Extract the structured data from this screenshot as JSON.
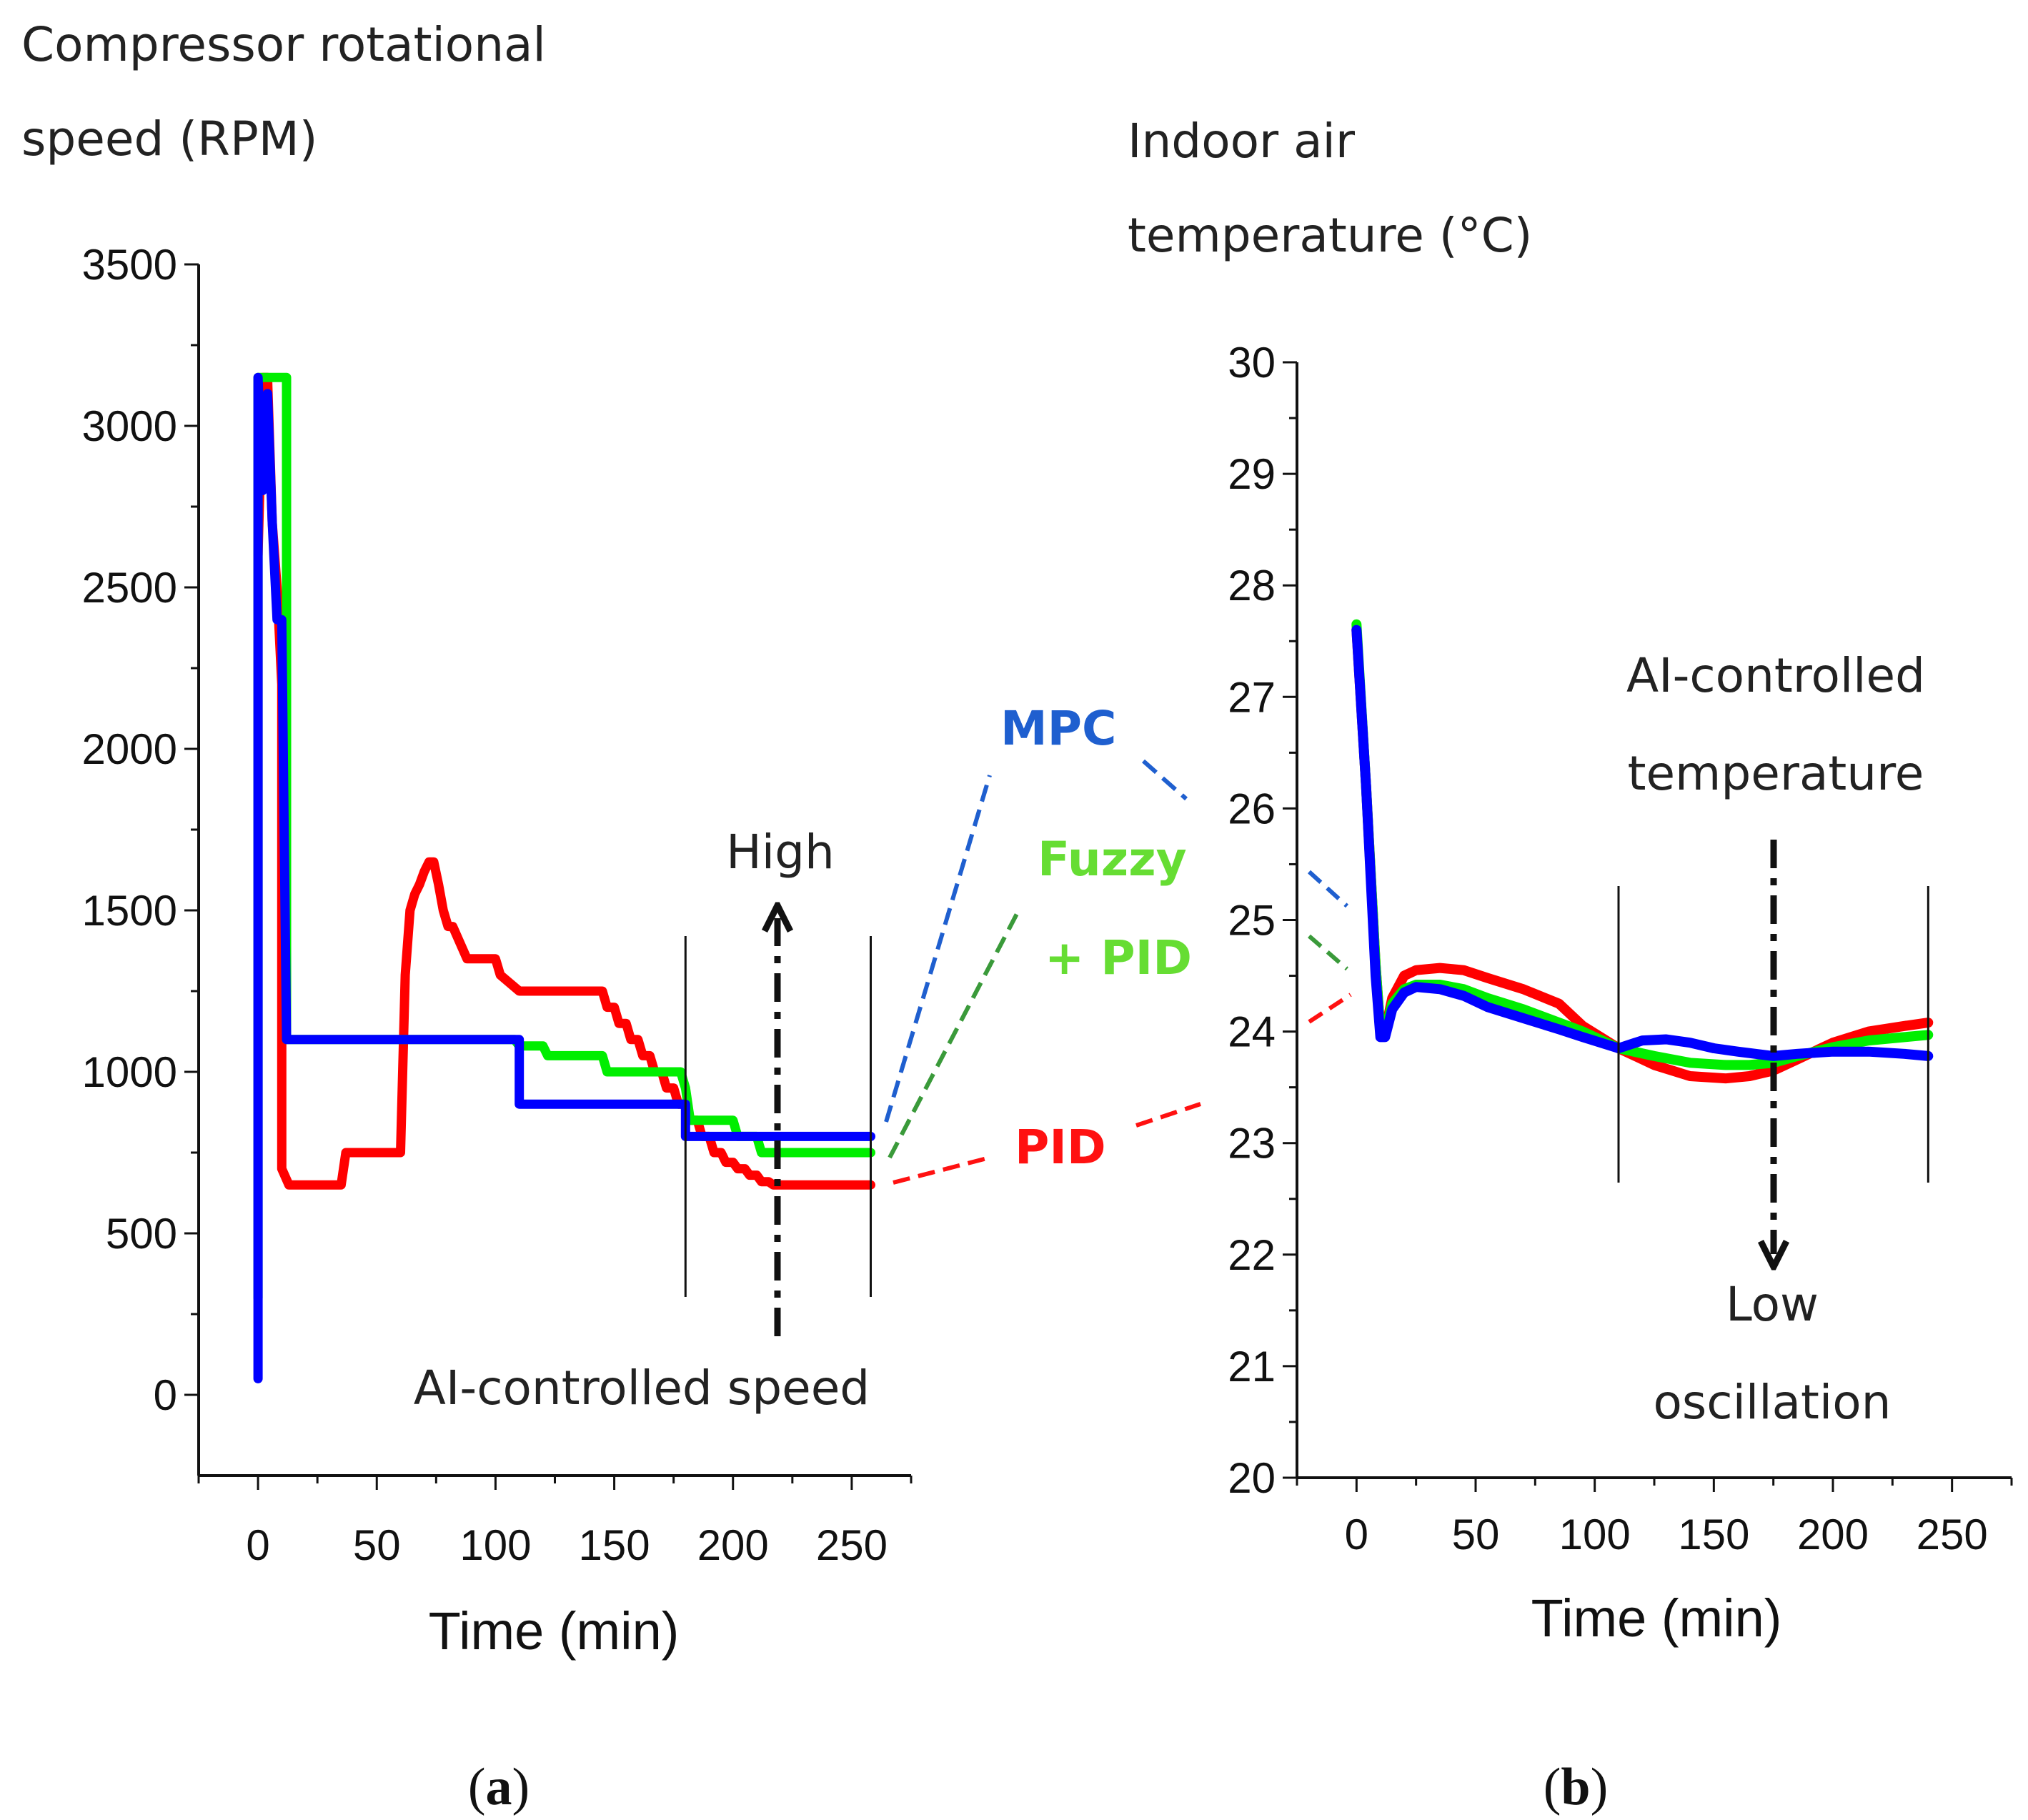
{
  "captions": {
    "a": [
      "(",
      "a",
      ")"
    ],
    "b": [
      "(",
      "b",
      ")"
    ]
  },
  "chart_data": [
    {
      "id": "a",
      "type": "line",
      "title_lines": [
        "Compressor rotational",
        "speed (RPM)"
      ],
      "xlabel": "Time (min)",
      "ylabel": "Compressor rotational speed (RPM)",
      "xlim": [
        -25,
        275
      ],
      "ylim": [
        -250,
        3500
      ],
      "xticks": [
        0,
        50,
        100,
        150,
        200,
        250
      ],
      "yticks": [
        0,
        500,
        1000,
        1500,
        2000,
        2500,
        3000,
        3500
      ],
      "vlines": [
        180,
        258
      ],
      "annotations": {
        "arrow_label": "High",
        "bottom_label": "AI-controlled speed"
      },
      "series": [
        {
          "name": "PID",
          "color": "#ff0000",
          "x": [
            0,
            2,
            4,
            6,
            8,
            10,
            10,
            13,
            35,
            37,
            50,
            52,
            60,
            62,
            64,
            66,
            68,
            70,
            72,
            74,
            76,
            78,
            80,
            82,
            88,
            90,
            100,
            102,
            110,
            112,
            145,
            147,
            150,
            152,
            155,
            157,
            160,
            162,
            165,
            167,
            170,
            172,
            175,
            177,
            180,
            182,
            185,
            187,
            190,
            192,
            195,
            197,
            200,
            202,
            205,
            207,
            210,
            212,
            215,
            217,
            258
          ],
          "y": [
            2600,
            3150,
            3150,
            2700,
            2500,
            2200,
            700,
            650,
            650,
            750,
            750,
            750,
            750,
            1300,
            1500,
            1550,
            1580,
            1620,
            1650,
            1650,
            1580,
            1500,
            1450,
            1450,
            1350,
            1350,
            1350,
            1300,
            1250,
            1250,
            1250,
            1200,
            1200,
            1150,
            1150,
            1100,
            1100,
            1050,
            1050,
            1000,
            1000,
            950,
            950,
            900,
            900,
            850,
            850,
            800,
            800,
            750,
            750,
            720,
            720,
            700,
            700,
            680,
            680,
            660,
            660,
            650,
            650
          ]
        },
        {
          "name": "Fuzzy + PID",
          "color": "#00ee00",
          "x": [
            0,
            0,
            2,
            2,
            12,
            12,
            16,
            108,
            110,
            120,
            122,
            145,
            147,
            178,
            180,
            182,
            200,
            202,
            210,
            212,
            258
          ],
          "y": [
            300,
            3150,
            3150,
            3150,
            3150,
            1100,
            1100,
            1100,
            1080,
            1080,
            1050,
            1050,
            1000,
            1000,
            950,
            850,
            850,
            800,
            800,
            750,
            750
          ]
        },
        {
          "name": "MPC",
          "color": "#0000ff",
          "x": [
            0,
            0,
            2,
            4,
            6,
            8,
            10,
            12,
            14,
            110,
            110,
            180,
            180,
            258
          ],
          "y": [
            50,
            3150,
            2800,
            3100,
            2700,
            2400,
            2400,
            1100,
            1100,
            1100,
            900,
            900,
            800,
            800
          ]
        }
      ],
      "legend": [
        {
          "lines": [
            "MPC"
          ],
          "color": "#1f5fcf"
        },
        {
          "lines": [
            "Fuzzy",
            "+ PID"
          ],
          "color": "#66dd33"
        },
        {
          "lines": [
            "PID"
          ],
          "color": "#ff1111"
        }
      ]
    },
    {
      "id": "b",
      "type": "line",
      "title_lines": [
        "Indoor air",
        "temperature (°C)"
      ],
      "xlabel": "Time (min)",
      "ylabel": "Indoor air temperature (°C)",
      "xlim": [
        -25,
        275
      ],
      "ylim": [
        20,
        30
      ],
      "xticks": [
        0,
        50,
        100,
        150,
        200,
        250
      ],
      "yticks": [
        20,
        21,
        22,
        23,
        24,
        25,
        26,
        27,
        28,
        29,
        30
      ],
      "vlines": [
        110,
        240
      ],
      "annotations": {
        "top_label": [
          "AI-controlled",
          "temperature"
        ],
        "arrow_label": [
          "Low",
          "oscillation"
        ]
      },
      "series": [
        {
          "name": "PID",
          "color": "#ff0000",
          "x": [
            0,
            4,
            8,
            10,
            12,
            15,
            20,
            25,
            35,
            45,
            55,
            70,
            85,
            95,
            110,
            125,
            140,
            155,
            165,
            175,
            185,
            200,
            215,
            230,
            240
          ],
          "y": [
            27.6,
            26.2,
            24.6,
            24.0,
            24.0,
            24.3,
            24.5,
            24.55,
            24.57,
            24.55,
            24.48,
            24.38,
            24.25,
            24.05,
            23.85,
            23.7,
            23.6,
            23.58,
            23.6,
            23.65,
            23.75,
            23.9,
            24.0,
            24.05,
            24.08
          ]
        },
        {
          "name": "Fuzzy + PID",
          "color": "#00ee00",
          "x": [
            0,
            4,
            8,
            10,
            12,
            15,
            20,
            25,
            35,
            45,
            55,
            70,
            85,
            95,
            110,
            125,
            140,
            155,
            165,
            175,
            185,
            200,
            215,
            230,
            240
          ],
          "y": [
            27.65,
            26.2,
            24.6,
            24.0,
            24.0,
            24.25,
            24.38,
            24.42,
            24.42,
            24.38,
            24.3,
            24.2,
            24.08,
            24.0,
            23.85,
            23.78,
            23.72,
            23.7,
            23.7,
            23.72,
            23.78,
            23.86,
            23.92,
            23.95,
            23.97
          ]
        },
        {
          "name": "MPC",
          "color": "#0000ff",
          "x": [
            0,
            4,
            8,
            10,
            12,
            15,
            20,
            25,
            35,
            45,
            55,
            70,
            85,
            95,
            110,
            120,
            130,
            140,
            150,
            160,
            175,
            185,
            200,
            215,
            230,
            240
          ],
          "y": [
            27.6,
            26.2,
            24.5,
            23.95,
            23.95,
            24.2,
            24.35,
            24.4,
            24.38,
            24.32,
            24.22,
            24.12,
            24.02,
            23.95,
            23.85,
            23.92,
            23.93,
            23.9,
            23.85,
            23.82,
            23.78,
            23.8,
            23.82,
            23.82,
            23.8,
            23.78
          ]
        }
      ]
    }
  ]
}
